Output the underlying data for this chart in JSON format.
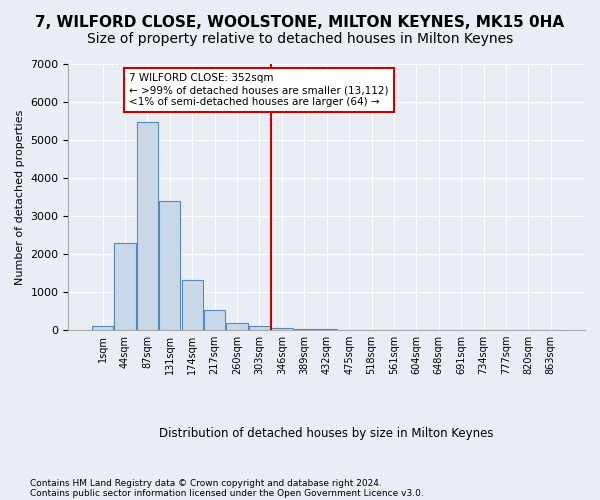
{
  "title": "7, WILFORD CLOSE, WOOLSTONE, MILTON KEYNES, MK15 0HA",
  "subtitle": "Size of property relative to detached houses in Milton Keynes",
  "xlabel": "Distribution of detached houses by size in Milton Keynes",
  "ylabel": "Number of detached properties",
  "footer_line1": "Contains HM Land Registry data © Crown copyright and database right 2024.",
  "footer_line2": "Contains public sector information licensed under the Open Government Licence v3.0.",
  "bin_labels": [
    "1sqm",
    "44sqm",
    "87sqm",
    "131sqm",
    "174sqm",
    "217sqm",
    "260sqm",
    "303sqm",
    "346sqm",
    "389sqm",
    "432sqm",
    "475sqm",
    "518sqm",
    "561sqm",
    "604sqm",
    "648sqm",
    "691sqm",
    "734sqm",
    "777sqm",
    "820sqm",
    "863sqm"
  ],
  "bar_values": [
    100,
    2280,
    5480,
    3390,
    1310,
    510,
    185,
    90,
    55,
    30,
    15,
    8,
    5,
    3,
    2,
    1,
    1,
    0,
    0,
    0,
    0
  ],
  "bar_color": "#c8d8e8",
  "bar_edge_color": "#5588bb",
  "vline_x_index": 8,
  "vline_color": "#cc0000",
  "annotation_line1": "7 WILFORD CLOSE: 352sqm",
  "annotation_line2": "← >99% of detached houses are smaller (13,112)",
  "annotation_line3": "<1% of semi-detached houses are larger (64) →",
  "annotation_box_color": "#cc0000",
  "ylim": [
    0,
    7000
  ],
  "yticks": [
    0,
    1000,
    2000,
    3000,
    4000,
    5000,
    6000,
    7000
  ],
  "background_color": "#e8eef4",
  "plot_bg_color": "#e8eef4",
  "grid_color": "#ffffff",
  "title_fontsize": 11,
  "subtitle_fontsize": 10
}
